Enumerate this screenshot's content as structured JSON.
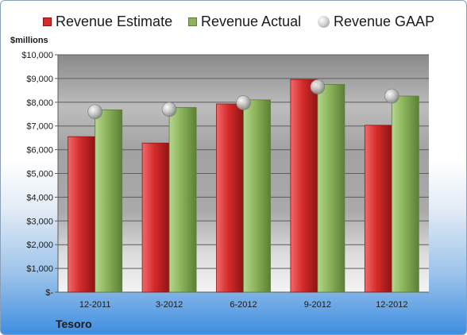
{
  "chart_data": {
    "type": "bar",
    "title": "",
    "ylabel": "$millions",
    "xlabel": "Tesoro",
    "ylim": [
      0,
      10000
    ],
    "categories": [
      "12-2011",
      "3-2012",
      "6-2012",
      "9-2012",
      "12-2012"
    ],
    "y_ticks": [
      "$-",
      "$1,000",
      "$2,000",
      "$3,000",
      "$4,000",
      "$5,000",
      "$6,000",
      "$7,000",
      "$8,000",
      "$9,000",
      "$10,000"
    ],
    "series": [
      {
        "name": "Revenue Estimate",
        "kind": "bar",
        "color": "#d42a2a",
        "values": [
          6550,
          6280,
          7930,
          8960,
          7030
        ]
      },
      {
        "name": "Revenue Actual",
        "kind": "bar",
        "color": "#8ab35a",
        "values": [
          7680,
          7780,
          8100,
          8750,
          8260
        ]
      },
      {
        "name": "Revenue GAAP",
        "kind": "marker",
        "color": "#b8b8b8",
        "values": [
          7600,
          7700,
          7980,
          8650,
          8260
        ]
      }
    ],
    "legend_position": "top",
    "grid": true
  }
}
